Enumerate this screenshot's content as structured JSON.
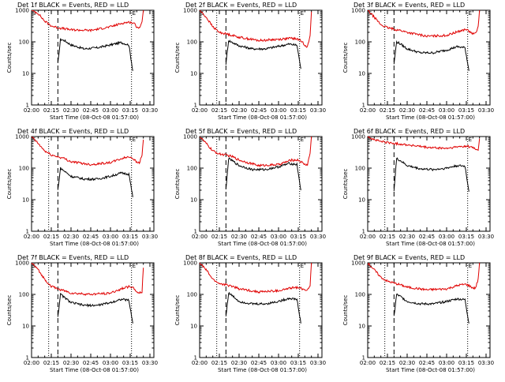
{
  "figure": {
    "xlabel": "Start Time (08-Oct-08 01:57:00)",
    "ylabel": "Counts/sec",
    "legend_text": "BLACK = Events, RED = LLD",
    "colors": {
      "events": "#000000",
      "lld": "#e00000",
      "axes": "#000000"
    },
    "marker_labels": [
      "S",
      "E"
    ]
  },
  "chart_data": [
    {
      "type": "line",
      "title": "Det 1f BLACK = Events, RED = LLD",
      "xticks": [
        "02:00",
        "02:15",
        "02:30",
        "02:45",
        "03:00",
        "03:15",
        "03:30"
      ],
      "yticks": [
        "1",
        "10",
        "100",
        "1000"
      ],
      "ylim": [
        1,
        1000
      ],
      "yscale": "log",
      "markers": {
        "dotted": [
          "02:13",
          "03:16"
        ],
        "dashed": [
          "02:20"
        ]
      },
      "series": [
        {
          "name": "Events",
          "color": "#000000",
          "x": [
            "02:20",
            "02:22",
            "02:25",
            "02:30",
            "02:40",
            "02:50",
            "03:00",
            "03:08",
            "03:14",
            "03:17"
          ],
          "y": [
            20,
            120,
            110,
            80,
            60,
            65,
            80,
            95,
            80,
            12
          ]
        },
        {
          "name": "LLD",
          "color": "#e00000",
          "x": [
            "02:00",
            "02:05",
            "02:10",
            "02:15",
            "02:20",
            "02:25",
            "02:30",
            "02:45",
            "03:00",
            "03:10",
            "03:15",
            "03:18",
            "03:20",
            "03:22",
            "03:24",
            "03:25"
          ],
          "y": [
            1000,
            800,
            450,
            320,
            280,
            260,
            240,
            230,
            300,
            400,
            420,
            380,
            300,
            280,
            400,
            1000
          ]
        }
      ]
    },
    {
      "type": "line",
      "title": "Det 2f BLACK = Events, RED = LLD",
      "xticks": [
        "02:00",
        "02:15",
        "02:30",
        "02:45",
        "03:00",
        "03:15",
        "03:30"
      ],
      "yticks": [
        "1",
        "10",
        "100",
        "1000"
      ],
      "ylim": [
        1,
        1000
      ],
      "yscale": "log",
      "markers": {
        "dotted": [
          "02:13",
          "03:16"
        ],
        "dashed": [
          "02:20"
        ]
      },
      "series": [
        {
          "name": "Events",
          "color": "#000000",
          "x": [
            "02:20",
            "02:22",
            "02:25",
            "02:30",
            "02:40",
            "02:50",
            "03:00",
            "03:08",
            "03:14",
            "03:17"
          ],
          "y": [
            20,
            110,
            95,
            75,
            60,
            60,
            72,
            85,
            78,
            14
          ]
        },
        {
          "name": "LLD",
          "color": "#e00000",
          "x": [
            "02:00",
            "02:05",
            "02:10",
            "02:15",
            "02:20",
            "02:25",
            "02:30",
            "02:45",
            "03:00",
            "03:10",
            "03:15",
            "03:18",
            "03:20",
            "03:22",
            "03:24",
            "03:25"
          ],
          "y": [
            1000,
            600,
            300,
            200,
            180,
            160,
            140,
            110,
            120,
            130,
            120,
            100,
            80,
            70,
            150,
            900
          ]
        }
      ]
    },
    {
      "type": "line",
      "title": "Det 3f BLACK = Events, RED = LLD",
      "xticks": [
        "02:00",
        "02:15",
        "02:30",
        "02:45",
        "03:00",
        "03:15",
        "03:30"
      ],
      "yticks": [
        "1",
        "10",
        "100",
        "1000"
      ],
      "ylim": [
        1,
        1000
      ],
      "yscale": "log",
      "markers": {
        "dotted": [
          "02:13",
          "03:16"
        ],
        "dashed": [
          "02:20"
        ]
      },
      "series": [
        {
          "name": "Events",
          "color": "#000000",
          "x": [
            "02:20",
            "02:22",
            "02:25",
            "02:30",
            "02:40",
            "02:50",
            "03:00",
            "03:08",
            "03:14",
            "03:17"
          ],
          "y": [
            20,
            100,
            85,
            60,
            45,
            45,
            55,
            70,
            65,
            12
          ]
        },
        {
          "name": "LLD",
          "color": "#e00000",
          "x": [
            "02:00",
            "02:05",
            "02:10",
            "02:15",
            "02:20",
            "02:25",
            "02:30",
            "02:45",
            "03:00",
            "03:10",
            "03:15",
            "03:18",
            "03:20",
            "03:22",
            "03:24",
            "03:25"
          ],
          "y": [
            1000,
            600,
            350,
            280,
            250,
            230,
            200,
            150,
            160,
            220,
            250,
            200,
            180,
            180,
            300,
            1000
          ]
        }
      ]
    },
    {
      "type": "line",
      "title": "Det 4f BLACK = Events, RED = LLD",
      "xticks": [
        "02:00",
        "02:15",
        "02:30",
        "02:45",
        "03:00",
        "03:15",
        "03:30"
      ],
      "yticks": [
        "1",
        "10",
        "100",
        "1000"
      ],
      "ylim": [
        1,
        1000
      ],
      "yscale": "log",
      "markers": {
        "dotted": [
          "02:13",
          "03:16"
        ],
        "dashed": [
          "02:20"
        ]
      },
      "series": [
        {
          "name": "Events",
          "color": "#000000",
          "x": [
            "02:20",
            "02:22",
            "02:25",
            "02:30",
            "02:40",
            "02:50",
            "03:00",
            "03:08",
            "03:14",
            "03:17"
          ],
          "y": [
            20,
            100,
            80,
            55,
            45,
            45,
            55,
            70,
            65,
            12
          ]
        },
        {
          "name": "LLD",
          "color": "#e00000",
          "x": [
            "02:00",
            "02:05",
            "02:10",
            "02:15",
            "02:20",
            "02:25",
            "02:30",
            "02:45",
            "03:00",
            "03:10",
            "03:15",
            "03:18",
            "03:20",
            "03:22",
            "03:24",
            "03:25"
          ],
          "y": [
            1000,
            600,
            350,
            260,
            230,
            200,
            160,
            130,
            150,
            210,
            230,
            190,
            150,
            150,
            250,
            800
          ]
        }
      ]
    },
    {
      "type": "line",
      "title": "Det 5f BLACK = Events, RED = LLD",
      "xticks": [
        "02:00",
        "02:15",
        "02:30",
        "02:45",
        "03:00",
        "03:15",
        "03:30"
      ],
      "yticks": [
        "1",
        "10",
        "100",
        "1000"
      ],
      "ylim": [
        1,
        1000
      ],
      "yscale": "log",
      "markers": {
        "dotted": [
          "02:13",
          "03:16"
        ],
        "dashed": [
          "02:20"
        ]
      },
      "series": [
        {
          "name": "Events",
          "color": "#000000",
          "x": [
            "02:20",
            "02:22",
            "02:25",
            "02:30",
            "02:40",
            "02:50",
            "03:00",
            "03:08",
            "03:14",
            "03:17"
          ],
          "y": [
            20,
            200,
            170,
            120,
            90,
            90,
            110,
            140,
            130,
            20
          ]
        },
        {
          "name": "LLD",
          "color": "#e00000",
          "x": [
            "02:00",
            "02:05",
            "02:10",
            "02:15",
            "02:20",
            "02:25",
            "02:30",
            "02:45",
            "03:00",
            "03:10",
            "03:15",
            "03:18",
            "03:20",
            "03:22",
            "03:24",
            "03:25"
          ],
          "y": [
            1000,
            600,
            350,
            280,
            260,
            230,
            180,
            120,
            130,
            180,
            180,
            150,
            130,
            130,
            300,
            1000
          ]
        }
      ]
    },
    {
      "type": "line",
      "title": "Det 6f BLACK = Events, RED = LLD",
      "xticks": [
        "02:00",
        "02:15",
        "02:30",
        "02:45",
        "03:00",
        "03:15",
        "03:30"
      ],
      "yticks": [
        "1",
        "10",
        "100",
        "1000"
      ],
      "ylim": [
        1,
        1000
      ],
      "yscale": "log",
      "markers": {
        "dotted": [
          "02:13",
          "03:16"
        ],
        "dashed": [
          "02:20"
        ]
      },
      "series": [
        {
          "name": "Events",
          "color": "#000000",
          "x": [
            "02:20",
            "02:22",
            "02:25",
            "02:30",
            "02:40",
            "02:50",
            "03:00",
            "03:08",
            "03:14",
            "03:17"
          ],
          "y": [
            20,
            200,
            170,
            120,
            95,
            90,
            100,
            120,
            115,
            18
          ]
        },
        {
          "name": "LLD",
          "color": "#e00000",
          "x": [
            "02:00",
            "02:05",
            "02:10",
            "02:15",
            "02:20",
            "02:25",
            "02:30",
            "02:45",
            "03:00",
            "03:10",
            "03:15",
            "03:18",
            "03:20",
            "03:22",
            "03:24",
            "03:25"
          ],
          "y": [
            1000,
            800,
            700,
            650,
            600,
            580,
            550,
            450,
            420,
            480,
            500,
            470,
            450,
            400,
            380,
            850
          ]
        }
      ]
    },
    {
      "type": "line",
      "title": "Det 7f BLACK = Events, RED = LLD",
      "xticks": [
        "02:00",
        "02:15",
        "02:30",
        "02:45",
        "03:00",
        "03:15",
        "03:30"
      ],
      "yticks": [
        "1",
        "10",
        "100",
        "1000"
      ],
      "ylim": [
        1,
        1000
      ],
      "yscale": "log",
      "markers": {
        "dotted": [
          "02:13",
          "03:16"
        ],
        "dashed": [
          "02:20"
        ]
      },
      "series": [
        {
          "name": "Events",
          "color": "#000000",
          "x": [
            "02:20",
            "02:22",
            "02:25",
            "02:30",
            "02:40",
            "02:50",
            "03:00",
            "03:08",
            "03:14",
            "03:17"
          ],
          "y": [
            20,
            100,
            80,
            55,
            45,
            45,
            55,
            70,
            65,
            12
          ]
        },
        {
          "name": "LLD",
          "color": "#e00000",
          "x": [
            "02:00",
            "02:05",
            "02:10",
            "02:15",
            "02:20",
            "02:25",
            "02:30",
            "02:45",
            "03:00",
            "03:10",
            "03:15",
            "03:18",
            "03:20",
            "03:22",
            "03:24",
            "03:25"
          ],
          "y": [
            1000,
            600,
            300,
            180,
            150,
            130,
            110,
            100,
            110,
            160,
            180,
            150,
            120,
            110,
            120,
            700
          ]
        }
      ]
    },
    {
      "type": "line",
      "title": "Det 8f BLACK = Events, RED = LLD",
      "xticks": [
        "02:00",
        "02:15",
        "02:30",
        "02:45",
        "03:00",
        "03:15",
        "03:30"
      ],
      "yticks": [
        "1",
        "10",
        "100",
        "1000"
      ],
      "ylim": [
        1,
        1000
      ],
      "yscale": "log",
      "markers": {
        "dotted": [
          "02:13",
          "03:16"
        ],
        "dashed": [
          "02:20"
        ]
      },
      "series": [
        {
          "name": "Events",
          "color": "#000000",
          "x": [
            "02:20",
            "02:22",
            "02:25",
            "02:30",
            "02:40",
            "02:50",
            "03:00",
            "03:08",
            "03:14",
            "03:17"
          ],
          "y": [
            20,
            110,
            90,
            60,
            50,
            50,
            60,
            75,
            70,
            12
          ]
        },
        {
          "name": "LLD",
          "color": "#e00000",
          "x": [
            "02:00",
            "02:05",
            "02:10",
            "02:15",
            "02:20",
            "02:25",
            "02:30",
            "02:45",
            "03:00",
            "03:10",
            "03:15",
            "03:18",
            "03:20",
            "03:22",
            "03:24",
            "03:25"
          ],
          "y": [
            1000,
            600,
            300,
            220,
            200,
            180,
            150,
            120,
            130,
            160,
            170,
            150,
            140,
            140,
            200,
            1000
          ]
        }
      ]
    },
    {
      "type": "line",
      "title": "Det 9f BLACK = Events, RED = LLD",
      "xticks": [
        "02:00",
        "02:15",
        "02:30",
        "02:45",
        "03:00",
        "03:15",
        "03:30"
      ],
      "yticks": [
        "1",
        "10",
        "100",
        "1000"
      ],
      "ylim": [
        1,
        1000
      ],
      "yscale": "log",
      "markers": {
        "dotted": [
          "02:13",
          "03:16"
        ],
        "dashed": [
          "02:20"
        ]
      },
      "series": [
        {
          "name": "Events",
          "color": "#000000",
          "x": [
            "02:20",
            "02:22",
            "02:25",
            "02:30",
            "02:40",
            "02:50",
            "03:00",
            "03:08",
            "03:14",
            "03:17"
          ],
          "y": [
            20,
            100,
            85,
            60,
            50,
            50,
            60,
            72,
            68,
            12
          ]
        },
        {
          "name": "LLD",
          "color": "#e00000",
          "x": [
            "02:00",
            "02:05",
            "02:10",
            "02:15",
            "02:20",
            "02:25",
            "02:30",
            "02:45",
            "03:00",
            "03:10",
            "03:15",
            "03:18",
            "03:20",
            "03:22",
            "03:24",
            "03:25"
          ],
          "y": [
            1000,
            600,
            350,
            260,
            230,
            200,
            170,
            140,
            150,
            200,
            210,
            180,
            160,
            160,
            300,
            1000
          ]
        }
      ]
    }
  ]
}
